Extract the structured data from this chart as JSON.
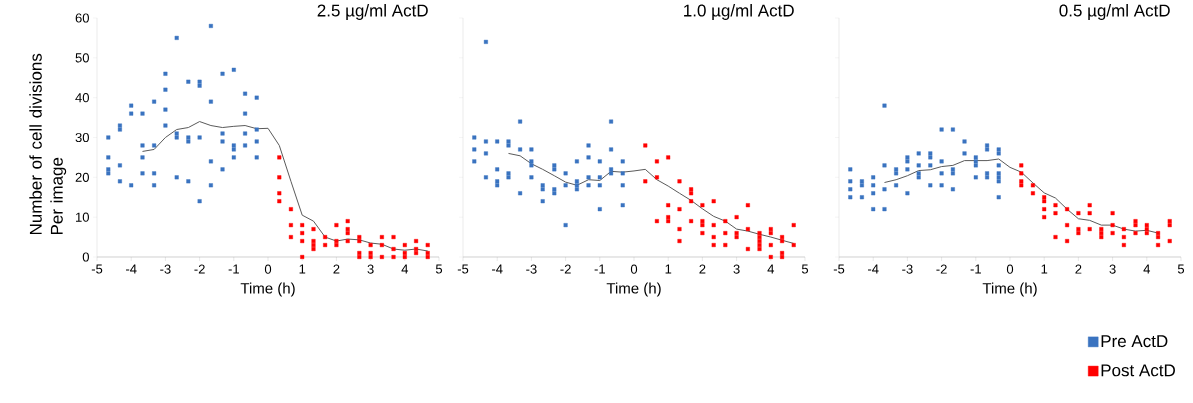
{
  "chart_data": [
    {
      "type": "scatter",
      "title": "2.5 µg/ml ActD",
      "xlabel": "Time (h)",
      "ylabel": "Number of cell divisions Per image",
      "xlim": [
        -5,
        5
      ],
      "xticks": [
        -5,
        -4,
        -3,
        -2,
        -1,
        0,
        1,
        2,
        3,
        4,
        5
      ],
      "ylim": [
        0,
        60
      ],
      "yticks": [
        0,
        10,
        20,
        30,
        40,
        50,
        60
      ],
      "marker": "square",
      "series": [
        {
          "color": "#3a73c0",
          "x": [
            -4.67,
            -4.67,
            -4.67,
            -4.67,
            -4.33,
            -4.33,
            -4.33,
            -4.33,
            -4,
            -4,
            -4,
            -3.67,
            -3.67,
            -3.67,
            -3.67,
            -3.33,
            -3.33,
            -3.33,
            -3.33,
            -3,
            -3,
            -3,
            -3,
            -2.67,
            -2.67,
            -2.67,
            -2.67,
            -2.33,
            -2.33,
            -2.33,
            -2.33,
            -2,
            -2,
            -2,
            -2,
            -1.67,
            -1.67,
            -1.67,
            -1.67,
            -1.33,
            -1.33,
            -1.33,
            -1.33,
            -1,
            -1,
            -1,
            -1,
            -0.67,
            -0.67,
            -0.67,
            -0.67,
            -0.33,
            -0.33,
            -0.33,
            -0.33
          ],
          "values": [
            30,
            25,
            22,
            21,
            33,
            32,
            23,
            19,
            38,
            36,
            18,
            36,
            28,
            25,
            21,
            39,
            28,
            21,
            18,
            46,
            42,
            37,
            33,
            55,
            31,
            30,
            20,
            44,
            30,
            29,
            19,
            44,
            43,
            30,
            14,
            58,
            39,
            24,
            18,
            46,
            31,
            29,
            22,
            47,
            28,
            27,
            25,
            41,
            36,
            31,
            28,
            40,
            32,
            29,
            25
          ]
        },
        {
          "color": "#ff0000",
          "x": [
            0.33,
            0.33,
            0.33,
            0.33,
            0.67,
            0.67,
            0.67,
            1,
            1,
            1,
            1,
            1.33,
            1.33,
            1.33,
            1.33,
            1.67,
            1.67,
            2,
            2,
            2,
            2.33,
            2.33,
            2.33,
            2.33,
            2.67,
            2.67,
            2.67,
            2.67,
            3,
            3,
            3,
            3.33,
            3.33,
            3.33,
            3.67,
            3.67,
            3.67,
            4,
            4,
            4,
            4.33,
            4.33,
            4.33,
            4.67,
            4.67,
            4.67
          ],
          "values": [
            25,
            20,
            16,
            14,
            12,
            8,
            5,
            8,
            6,
            4,
            0,
            7,
            4,
            3,
            2,
            5,
            3,
            8,
            4,
            3,
            9,
            7,
            6,
            4,
            5,
            4,
            1,
            0,
            3,
            1,
            0,
            5,
            3,
            0,
            5,
            2,
            0,
            3,
            1,
            0,
            4,
            2,
            1,
            3,
            1,
            0
          ]
        },
        {
          "type": "line",
          "marker": "none",
          "line_style": "solid",
          "color": "#595959",
          "x": [
            -3.67,
            -3.33,
            -3,
            -2.67,
            -2.33,
            -2,
            -1.67,
            -1.33,
            -1,
            -0.67,
            -0.33,
            0,
            0.33,
            0.67,
            1,
            1.33,
            1.67,
            2,
            2.33,
            2.67,
            3,
            3.33,
            3.67,
            4,
            4.33,
            4.67
          ],
          "values": [
            26.5,
            27,
            30,
            32,
            32.5,
            34,
            33,
            32.5,
            32.8,
            33,
            32.2,
            32.3,
            28,
            19,
            10.5,
            9,
            5,
            4,
            4.5,
            4.3,
            3.5,
            3.2,
            2,
            1.7,
            2,
            1.5
          ]
        }
      ]
    },
    {
      "type": "scatter",
      "title": "1.0 µg/ml ActD",
      "xlabel": "Time (h)",
      "xlim": [
        -5,
        5
      ],
      "xticks": [
        -5,
        -4,
        -3,
        -2,
        -1,
        0,
        1,
        2,
        3,
        4,
        5
      ],
      "ylim": [
        0,
        60
      ],
      "yticks": [
        0,
        10,
        20,
        30,
        40,
        50,
        60
      ],
      "tick_labels": "x",
      "marker": "square",
      "series": [
        {
          "color": "#3a73c0",
          "x": [
            -4.67,
            -4.67,
            -4.67,
            -4.33,
            -4.33,
            -4.33,
            -4.33,
            -4,
            -4,
            -4,
            -4,
            -3.67,
            -3.67,
            -3.67,
            -3.67,
            -3.33,
            -3.33,
            -3.33,
            -3,
            -3,
            -3,
            -3,
            -2.67,
            -2.67,
            -2.67,
            -2.33,
            -2.33,
            -2.33,
            -2.33,
            -2,
            -2,
            -2,
            -1.67,
            -1.67,
            -1.67,
            -1.67,
            -1.33,
            -1.33,
            -1.33,
            -1.33,
            -1,
            -1,
            -1,
            -1,
            -0.67,
            -0.67,
            -0.67,
            -0.67,
            -0.33,
            -0.33,
            -0.33,
            -0.33
          ],
          "values": [
            30,
            27,
            24,
            54,
            29,
            26,
            20,
            29,
            22,
            19,
            18,
            29,
            28,
            21,
            20,
            34,
            27,
            16,
            27,
            24,
            23,
            20,
            18,
            17,
            14,
            23,
            22,
            17,
            16,
            21,
            18,
            8,
            24,
            19,
            18,
            17,
            28,
            25,
            20,
            18,
            24,
            20,
            18,
            12,
            34,
            27,
            22,
            21,
            24,
            21,
            18,
            13
          ]
        },
        {
          "color": "#ff0000",
          "x": [
            0.33,
            0.33,
            0.67,
            0.67,
            0.67,
            1,
            1,
            1,
            1,
            1.33,
            1.33,
            1.33,
            1.33,
            1.67,
            1.67,
            1.67,
            1.67,
            2,
            2,
            2,
            2,
            2.33,
            2.33,
            2.33,
            2.33,
            2.67,
            2.67,
            2.67,
            3,
            3,
            3,
            3.33,
            3.33,
            3.33,
            3.67,
            3.67,
            3.67,
            3.67,
            3.67,
            4,
            4,
            4,
            4,
            4.33,
            4.33,
            4.33,
            4.33,
            4.67,
            4.67
          ],
          "values": [
            28,
            19,
            24,
            20,
            9,
            25,
            13,
            10,
            9,
            19,
            12,
            7,
            4,
            17,
            16,
            14,
            9,
            13,
            9,
            8,
            6,
            14,
            8,
            5,
            3,
            9,
            6,
            3,
            10,
            6,
            5,
            13,
            7,
            2,
            6,
            5,
            4,
            3,
            2,
            7,
            6,
            3,
            0,
            5,
            4,
            1,
            0,
            8,
            3
          ]
        },
        {
          "type": "line",
          "marker": "none",
          "line_style": "solid",
          "color": "#595959",
          "x": [
            -3.67,
            -3.33,
            -3,
            -2.67,
            -2.33,
            -2,
            -1.67,
            -1.33,
            -1,
            -0.67,
            -0.33,
            0,
            0.33,
            0.67,
            1,
            1.33,
            1.67,
            2,
            2.33,
            2.67,
            3,
            3.33,
            3.67,
            4,
            4.33,
            4.67
          ],
          "values": [
            26,
            25.4,
            23.4,
            22,
            20.4,
            18.8,
            18,
            19.4,
            19.2,
            21.5,
            21.3,
            21.6,
            22,
            19.4,
            17.8,
            16,
            14.2,
            12.1,
            10.2,
            9,
            7,
            6.5,
            5.7,
            5,
            4.2,
            3.4
          ]
        }
      ]
    },
    {
      "type": "scatter",
      "title": "0.5 µg/ml ActD",
      "xlabel": "Time (h)",
      "xlim": [
        -5,
        5
      ],
      "xticks": [
        -5,
        -4,
        -3,
        -2,
        -1,
        0,
        1,
        2,
        3,
        4,
        5
      ],
      "ylim": [
        0,
        60
      ],
      "yticks": [
        0,
        10,
        20,
        30,
        40,
        50,
        60
      ],
      "tick_labels": "x",
      "marker": "square",
      "legend": "bottom right",
      "series": [
        {
          "name": "Pre ActD",
          "color": "#3a73c0",
          "x": [
            -4.67,
            -4.67,
            -4.67,
            -4.67,
            -4.33,
            -4.33,
            -4.33,
            -4,
            -4,
            -4,
            -4,
            -3.67,
            -3.67,
            -3.67,
            -3.67,
            -3.33,
            -3.33,
            -3.33,
            -3,
            -3,
            -3,
            -3,
            -2.67,
            -2.67,
            -2.67,
            -2.67,
            -2.33,
            -2.33,
            -2.33,
            -2.33,
            -2,
            -2,
            -2,
            -2,
            -1.67,
            -1.67,
            -1.67,
            -1.67,
            -1.33,
            -1.33,
            -1,
            -1,
            -1,
            -1,
            -0.67,
            -0.67,
            -0.67,
            -0.67,
            -0.33,
            -0.33,
            -0.33,
            -0.33,
            -0.33,
            -0.33,
            -0.33
          ],
          "values": [
            22,
            19,
            17,
            15,
            19,
            18,
            15,
            20,
            18,
            16,
            12,
            38,
            23,
            17,
            12,
            22,
            21,
            18,
            25,
            24,
            22,
            16,
            26,
            23,
            21,
            20,
            26,
            25,
            23,
            18,
            32,
            24,
            21,
            18,
            32,
            22,
            21,
            17,
            29,
            26,
            25,
            24,
            23,
            20,
            28,
            27,
            21,
            20,
            27,
            26,
            23,
            21,
            20,
            19,
            15
          ]
        },
        {
          "name": "Post ActD",
          "color": "#ff0000",
          "x": [
            0.33,
            0.33,
            0.33,
            0.33,
            0.67,
            0.67,
            1,
            1,
            1,
            1,
            1.33,
            1.33,
            1.33,
            1.67,
            1.67,
            1.67,
            2,
            2,
            2,
            2.33,
            2.33,
            2.33,
            2.67,
            2.67,
            2.67,
            3,
            3,
            3,
            3.33,
            3.33,
            3.33,
            3.67,
            3.67,
            3.67,
            4,
            4,
            4,
            4.33,
            4.33,
            4.33,
            4.67,
            4.67,
            4.67
          ],
          "values": [
            23,
            21,
            19,
            18,
            18,
            16,
            15,
            14,
            12,
            10,
            13,
            11,
            5,
            12,
            8,
            4,
            11,
            7,
            6,
            13,
            11,
            7,
            7,
            6,
            5,
            11,
            8,
            6,
            7,
            5,
            3,
            9,
            8,
            6,
            8,
            7,
            6,
            6,
            5,
            3,
            9,
            8,
            4
          ]
        },
        {
          "type": "line",
          "marker": "none",
          "line_style": "solid",
          "color": "#595959",
          "x": [
            -3.67,
            -3.33,
            -3,
            -2.67,
            -2.33,
            -2,
            -1.67,
            -1.33,
            -1,
            -0.67,
            -0.33,
            0,
            0.33,
            0.67,
            1,
            1.33,
            1.67,
            2,
            2.33,
            2.67,
            3,
            3.33,
            3.67,
            4,
            4.33
          ],
          "values": [
            18.7,
            19.4,
            20.4,
            21.7,
            21.9,
            22.7,
            23,
            24.2,
            24.2,
            24.2,
            24.6,
            22.5,
            21.3,
            18.6,
            16.1,
            14.8,
            12,
            9.6,
            9.2,
            8,
            8,
            7,
            6.5,
            6.7,
            6
          ]
        }
      ]
    }
  ]
}
